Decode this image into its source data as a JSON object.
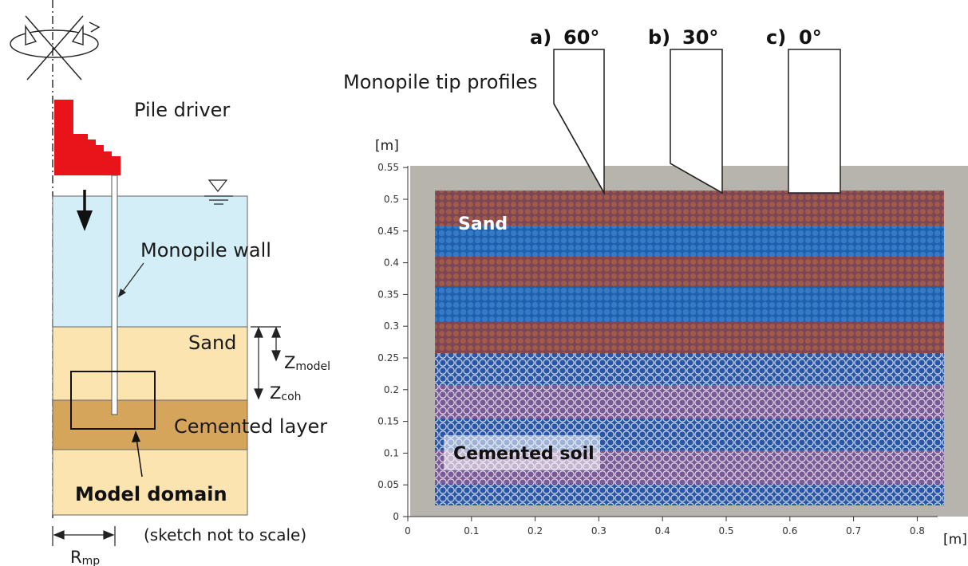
{
  "sketch": {
    "pile_driver_label": "Pile driver",
    "monopile_wall_label": "Monopile wall",
    "sand_label": "Sand",
    "cemented_layer_label": "Cemented layer",
    "model_domain_label": "Model domain",
    "z_model_main": "Z",
    "z_model_sub": "model",
    "z_coh_main": "Z",
    "z_coh_sub": "coh",
    "r_mp_main": "R",
    "r_mp_sub": "mp",
    "note": "(sketch not to scale)",
    "colors": {
      "pile_driver": "#e8141a",
      "water": "#d4eef8",
      "sand": "#fbe4b0",
      "cemented": "#d6a55c"
    }
  },
  "model": {
    "tip_profiles_label": "Monopile tip profiles",
    "tips": [
      {
        "letter": "a)",
        "angle": "60°"
      },
      {
        "letter": "b)",
        "angle": "30°"
      },
      {
        "letter": "c)",
        "angle": "0°"
      }
    ],
    "sand_label": "Sand",
    "cemented_label": "Cemented soil",
    "y_unit": "[m]",
    "x_unit": "[m]",
    "y_ticks": [
      "0",
      "0.05",
      "0.1",
      "0.15",
      "0.2",
      "0.25",
      "0.3",
      "0.35",
      "0.4",
      "0.45",
      "0.5",
      "0.55"
    ],
    "x_ticks": [
      "0",
      "0.1",
      "0.2",
      "0.3",
      "0.4",
      "0.5",
      "0.6",
      "0.7",
      "0.8"
    ],
    "colors": {
      "frame": "#b7b4ae",
      "sand_blue": "#1f5fae",
      "sand_brown": "#8a4a5c",
      "cemented_blue": "#2a56a8",
      "cemented_purple": "#7a5a96"
    }
  }
}
